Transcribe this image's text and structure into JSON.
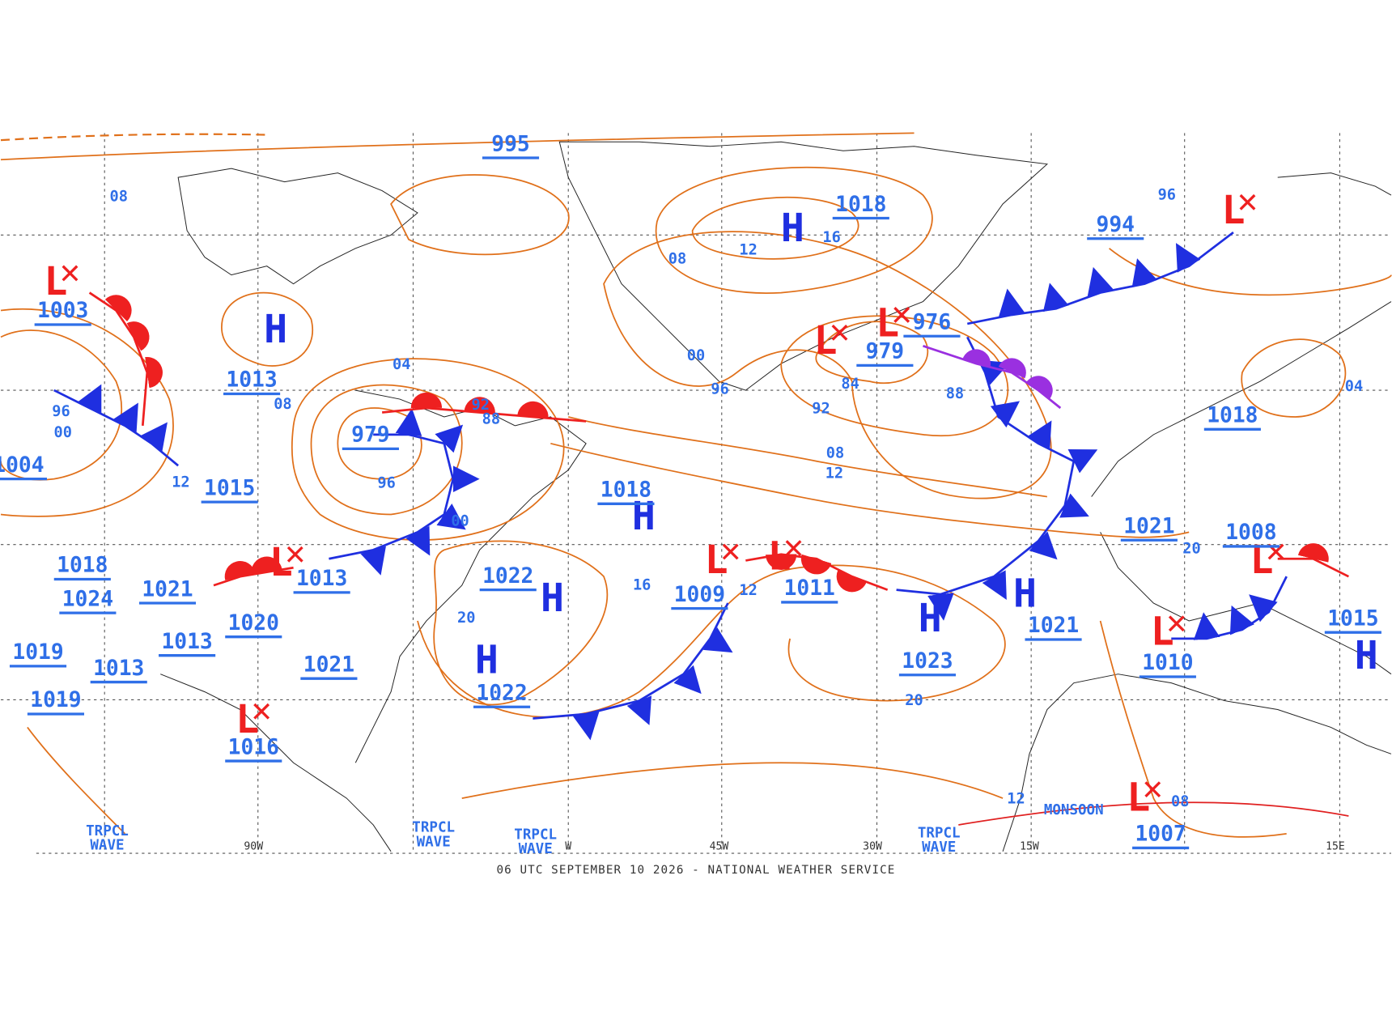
{
  "map": {
    "footer": "06 UTC SEPTEMBER 10 2026 - NATIONAL WEATHER SERVICE",
    "centers": [
      {
        "symbol": "L",
        "pressure": "1003"
      },
      {
        "symbol": "H",
        "pressure": "1013"
      },
      {
        "pressure": "979"
      },
      {
        "pressure": "995"
      },
      {
        "symbol": "H",
        "pressure": "1018"
      },
      {
        "symbol": "L",
        "pressure": "979"
      },
      {
        "symbol": "L",
        "pressure": "976"
      },
      {
        "symbol": "L",
        "pressure": "994"
      },
      {
        "pressure": "1018"
      },
      {
        "pressure": "1015"
      },
      {
        "symbol": "H",
        "pressure": "1018"
      },
      {
        "symbol": "H",
        "pressure": "1022"
      },
      {
        "symbol": "L",
        "pressure": "1013"
      },
      {
        "symbol": "L",
        "pressure": "1009"
      },
      {
        "symbol": "L",
        "pressure": "1011"
      },
      {
        "symbol": "H",
        "pressure": "1023"
      },
      {
        "symbol": "H",
        "pressure": "1021"
      },
      {
        "pressure": "1021"
      },
      {
        "symbol": "L",
        "pressure": "1008"
      },
      {
        "symbol": "L",
        "pressure": "1010"
      },
      {
        "symbol": "H",
        "pressure": "1015"
      },
      {
        "symbol": "H",
        "pressure": "1022"
      },
      {
        "pressure": "1021"
      },
      {
        "pressure": "1020"
      },
      {
        "pressure": "1013"
      },
      {
        "pressure": "1021"
      },
      {
        "pressure": "1018"
      },
      {
        "pressure": "1024"
      },
      {
        "pressure": "1019"
      },
      {
        "pressure": "1013"
      },
      {
        "pressure": "1019"
      },
      {
        "symbol": "L",
        "pressure": "1016"
      },
      {
        "symbol": "L",
        "pressure": "1007"
      },
      {
        "pressure": "1004"
      }
    ],
    "isobar_labels": [
      "08",
      "08",
      "12",
      "16",
      "00",
      "96",
      "04",
      "08",
      "96",
      "00",
      "92",
      "88",
      "96",
      "00",
      "12",
      "16",
      "12",
      "20",
      "84",
      "92",
      "88",
      "08",
      "12",
      "20",
      "20",
      "96",
      "04",
      "12",
      "08"
    ],
    "longitudes": [
      "90W",
      "W",
      "45W",
      "30W",
      "15W",
      "15E"
    ],
    "waves": [
      "TRPCL\nWAVE",
      "TRPCL\nWAVE",
      "TRPCL\nWAVE",
      "TRPCL\nWAVE"
    ],
    "monsoon": "MONSOON"
  }
}
